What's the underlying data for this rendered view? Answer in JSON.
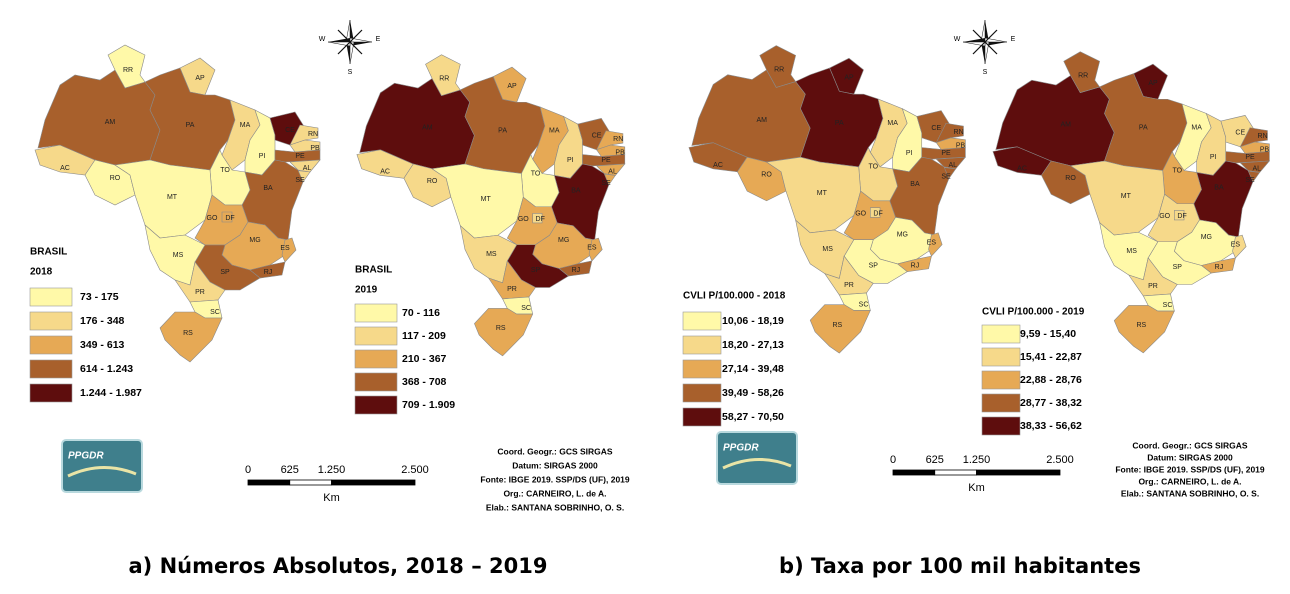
{
  "panels": [
    {
      "caption": "a) Números Absolutos, 2018 – 2019",
      "compass": {
        "west": "W",
        "east": "E",
        "south": "S"
      },
      "logo": "PPGDR",
      "scale_bar": {
        "ticks": [
          "0",
          "625",
          "1.250",
          "2.500"
        ],
        "unit": "Km"
      },
      "credits": [
        "Coord. Geogr.: GCS SIRGAS",
        "Datum: SIRGAS 2000",
        "Fonte: IBGE 2019. SSP/DS (UF), 2019",
        "Org.: CARNEIRO, L. de A.",
        "Elab.: SANTANA SOBRINHO, O. S."
      ],
      "maps": [
        {
          "legend_title": [
            "BRASIL",
            "2018"
          ],
          "legend": [
            {
              "label": "73 - 175",
              "color": "#fff9a8"
            },
            {
              "label": "176 - 348",
              "color": "#f6d98a"
            },
            {
              "label": "349 - 613",
              "color": "#e6a955"
            },
            {
              "label": "614 - 1.243",
              "color": "#a8602c"
            },
            {
              "label": "1.244 - 1.987",
              "color": "#5e0d0d"
            }
          ],
          "states": [
            {
              "label": "AC",
              "color": "#f6d98a"
            },
            {
              "label": "AM",
              "color": "#a8602c"
            },
            {
              "label": "RR",
              "color": "#fff9a8"
            },
            {
              "label": "AP",
              "color": "#f6d98a"
            },
            {
              "label": "PA",
              "color": "#a8602c"
            },
            {
              "label": "MA",
              "color": "#f6d98a"
            },
            {
              "label": "PI",
              "color": "#fff9a8"
            },
            {
              "label": "CE",
              "color": "#5e0d0d"
            },
            {
              "label": "RN",
              "color": "#f6d98a"
            },
            {
              "label": "PB",
              "color": "#f6d98a"
            },
            {
              "label": "PE",
              "color": "#a8602c"
            },
            {
              "label": "AL",
              "color": "#f6d98a"
            },
            {
              "label": "SE",
              "color": "#f6d98a"
            },
            {
              "label": "BA",
              "color": "#a8602c"
            },
            {
              "label": "TO",
              "color": "#fff9a8"
            },
            {
              "label": "RO",
              "color": "#fff9a8"
            },
            {
              "label": "MT",
              "color": "#fff9a8"
            },
            {
              "label": "GO",
              "color": "#e6a955"
            },
            {
              "label": "MG",
              "color": "#e6a955"
            },
            {
              "label": "ES",
              "color": "#e6a955"
            },
            {
              "label": "RJ",
              "color": "#a8602c"
            },
            {
              "label": "SP",
              "color": "#a8602c"
            },
            {
              "label": "MS",
              "color": "#fff9a8"
            },
            {
              "label": "PR",
              "color": "#f6d98a"
            },
            {
              "label": "SC",
              "color": "#fff9a8"
            },
            {
              "label": "RS",
              "color": "#e6a955"
            },
            {
              "label": "DF",
              "color": "#e6a955"
            }
          ]
        },
        {
          "legend_title": [
            "BRASIL",
            "2019"
          ],
          "legend": [
            {
              "label": "70 - 116",
              "color": "#fff9a8"
            },
            {
              "label": "117 - 209",
              "color": "#f6d98a"
            },
            {
              "label": "210 - 367",
              "color": "#e6a955"
            },
            {
              "label": "368 - 708",
              "color": "#a8602c"
            },
            {
              "label": "709 - 1.909",
              "color": "#5e0d0d"
            }
          ],
          "states": [
            {
              "label": "AC",
              "color": "#f6d98a"
            },
            {
              "label": "AM",
              "color": "#5e0d0d"
            },
            {
              "label": "RR",
              "color": "#f6d98a"
            },
            {
              "label": "AP",
              "color": "#e6a955"
            },
            {
              "label": "PA",
              "color": "#a8602c"
            },
            {
              "label": "MA",
              "color": "#e6a955"
            },
            {
              "label": "PI",
              "color": "#f6d98a"
            },
            {
              "label": "CE",
              "color": "#a8602c"
            },
            {
              "label": "RN",
              "color": "#e6a955"
            },
            {
              "label": "PB",
              "color": "#e6a955"
            },
            {
              "label": "PE",
              "color": "#a8602c"
            },
            {
              "label": "AL",
              "color": "#e6a955"
            },
            {
              "label": "SE",
              "color": "#e6a955"
            },
            {
              "label": "BA",
              "color": "#5e0d0d"
            },
            {
              "label": "TO",
              "color": "#fff9a8"
            },
            {
              "label": "RO",
              "color": "#f6d98a"
            },
            {
              "label": "MT",
              "color": "#fff9a8"
            },
            {
              "label": "GO",
              "color": "#e6a955"
            },
            {
              "label": "MG",
              "color": "#e6a955"
            },
            {
              "label": "ES",
              "color": "#e6a955"
            },
            {
              "label": "RJ",
              "color": "#a8602c"
            },
            {
              "label": "SP",
              "color": "#5e0d0d"
            },
            {
              "label": "MS",
              "color": "#f6d98a"
            },
            {
              "label": "PR",
              "color": "#e6a955"
            },
            {
              "label": "SC",
              "color": "#fff9a8"
            },
            {
              "label": "RS",
              "color": "#e6a955"
            },
            {
              "label": "DF",
              "color": "#f6d98a"
            }
          ]
        }
      ]
    },
    {
      "caption": "b) Taxa por 100 mil habitantes",
      "compass": {
        "west": "W",
        "east": "E",
        "south": "S"
      },
      "logo": "PPGDR",
      "scale_bar": {
        "ticks": [
          "0",
          "625",
          "1.250",
          "2.500"
        ],
        "unit": "Km"
      },
      "credits": [
        "Coord. Geogr.: GCS SIRGAS",
        "Datum: SIRGAS 2000",
        "Fonte: IBGE 2019. SSP/DS (UF), 2019",
        "Org.: CARNEIRO, L. de A.",
        "Elab.: SANTANA SOBRINHO, O. S."
      ],
      "maps": [
        {
          "legend_title": [
            "CVLI P/100.000 - 2018"
          ],
          "legend": [
            {
              "label": "10,06 - 18,19",
              "color": "#fff9a8"
            },
            {
              "label": "18,20 - 27,13",
              "color": "#f6d98a"
            },
            {
              "label": "27,14 - 39,48",
              "color": "#e6a955"
            },
            {
              "label": "39,49 - 58,26",
              "color": "#a8602c"
            },
            {
              "label": "58,27 - 70,50",
              "color": "#5e0d0d"
            }
          ],
          "states": [
            {
              "label": "AC",
              "color": "#a8602c"
            },
            {
              "label": "AM",
              "color": "#a8602c"
            },
            {
              "label": "RR",
              "color": "#a8602c"
            },
            {
              "label": "AP",
              "color": "#5e0d0d"
            },
            {
              "label": "PA",
              "color": "#5e0d0d"
            },
            {
              "label": "MA",
              "color": "#f6d98a"
            },
            {
              "label": "PI",
              "color": "#fff9a8"
            },
            {
              "label": "CE",
              "color": "#a8602c"
            },
            {
              "label": "RN",
              "color": "#a8602c"
            },
            {
              "label": "PB",
              "color": "#e6a955"
            },
            {
              "label": "PE",
              "color": "#a8602c"
            },
            {
              "label": "AL",
              "color": "#a8602c"
            },
            {
              "label": "SE",
              "color": "#a8602c"
            },
            {
              "label": "BA",
              "color": "#a8602c"
            },
            {
              "label": "TO",
              "color": "#f6d98a"
            },
            {
              "label": "RO",
              "color": "#e6a955"
            },
            {
              "label": "MT",
              "color": "#f6d98a"
            },
            {
              "label": "GO",
              "color": "#e6a955"
            },
            {
              "label": "MG",
              "color": "#fff9a8"
            },
            {
              "label": "ES",
              "color": "#e6a955"
            },
            {
              "label": "RJ",
              "color": "#e6a955"
            },
            {
              "label": "SP",
              "color": "#fff9a8"
            },
            {
              "label": "MS",
              "color": "#f6d98a"
            },
            {
              "label": "PR",
              "color": "#f6d98a"
            },
            {
              "label": "SC",
              "color": "#fff9a8"
            },
            {
              "label": "RS",
              "color": "#e6a955"
            },
            {
              "label": "DF",
              "color": "#f6d98a"
            }
          ]
        },
        {
          "legend_title": [
            "CVLI P/100.000 - 2019"
          ],
          "legend": [
            {
              "label": "9,59 - 15,40",
              "color": "#fff9a8"
            },
            {
              "label": "15,41 - 22,87",
              "color": "#f6d98a"
            },
            {
              "label": "22,88 - 28,76",
              "color": "#e6a955"
            },
            {
              "label": "28,77 - 38,32",
              "color": "#a8602c"
            },
            {
              "label": "38,33 - 56,62",
              "color": "#5e0d0d"
            }
          ],
          "states": [
            {
              "label": "AC",
              "color": "#5e0d0d"
            },
            {
              "label": "AM",
              "color": "#5e0d0d"
            },
            {
              "label": "RR",
              "color": "#a8602c"
            },
            {
              "label": "AP",
              "color": "#5e0d0d"
            },
            {
              "label": "PA",
              "color": "#a8602c"
            },
            {
              "label": "MA",
              "color": "#fff9a8"
            },
            {
              "label": "PI",
              "color": "#f6d98a"
            },
            {
              "label": "CE",
              "color": "#f6d98a"
            },
            {
              "label": "RN",
              "color": "#a8602c"
            },
            {
              "label": "PB",
              "color": "#e6a955"
            },
            {
              "label": "PE",
              "color": "#a8602c"
            },
            {
              "label": "AL",
              "color": "#a8602c"
            },
            {
              "label": "SE",
              "color": "#a8602c"
            },
            {
              "label": "BA",
              "color": "#5e0d0d"
            },
            {
              "label": "TO",
              "color": "#e6a955"
            },
            {
              "label": "RO",
              "color": "#a8602c"
            },
            {
              "label": "MT",
              "color": "#f6d98a"
            },
            {
              "label": "GO",
              "color": "#f6d98a"
            },
            {
              "label": "MG",
              "color": "#fff9a8"
            },
            {
              "label": "ES",
              "color": "#f6d98a"
            },
            {
              "label": "RJ",
              "color": "#e6a955"
            },
            {
              "label": "SP",
              "color": "#fff9a8"
            },
            {
              "label": "MS",
              "color": "#fff9a8"
            },
            {
              "label": "PR",
              "color": "#f6d98a"
            },
            {
              "label": "SC",
              "color": "#fff9a8"
            },
            {
              "label": "RS",
              "color": "#e6a955"
            },
            {
              "label": "DF",
              "color": "#f6d98a"
            }
          ]
        }
      ]
    }
  ]
}
